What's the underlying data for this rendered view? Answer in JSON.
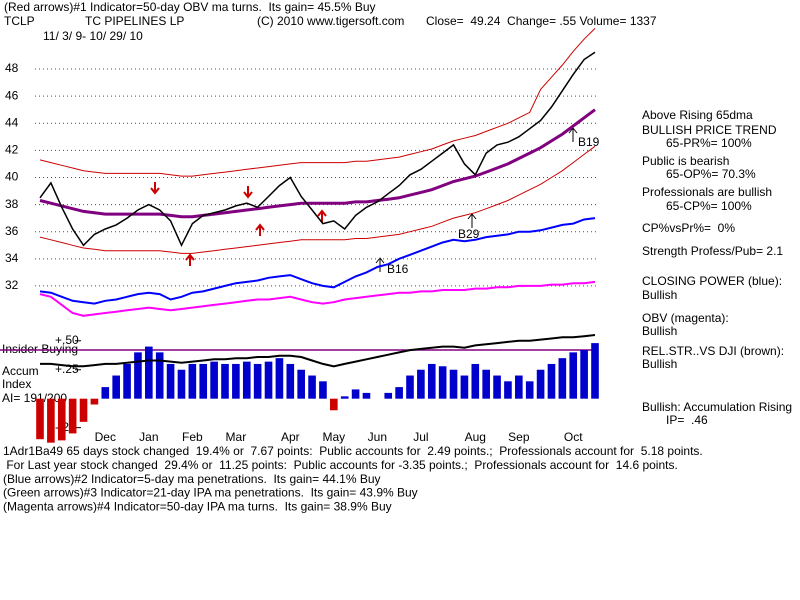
{
  "header": {
    "line1": "(Red arrows)#1 Indicator=50-day OBV ma turns.  Its gain= 45.5% Buy",
    "symbol": "TCLP",
    "name": "TC PIPELINES LP",
    "copyright": "(C) 2010 www.tigersoft.com",
    "quote": "Close=  49.24  Change= .55 Volume= 1337",
    "dates": "11/ 3/ 9- 10/ 29/ 10"
  },
  "chart_data": [
    {
      "type": "line",
      "ylim": [
        29,
        52
      ],
      "yticks": [
        32,
        34,
        36,
        38,
        40,
        42,
        44,
        46,
        48
      ],
      "grid": true,
      "grid_color": "#008000",
      "annotations": [
        "B16",
        "B19",
        "B29"
      ],
      "series": [
        {
          "color": "#cc0000",
          "width": 1,
          "values": [
            41.3,
            41.1,
            40.9,
            40.7,
            40.5,
            40.4,
            40.3,
            40.3,
            40.3,
            40.3,
            40.3,
            40.3,
            40.2,
            40.1,
            40.1,
            40.2,
            40.3,
            40.4,
            40.5,
            40.6,
            40.7,
            40.8,
            40.9,
            41.0,
            41.1,
            41.1,
            41.1,
            41.1,
            41.1,
            41.2,
            41.2,
            41.3,
            41.4,
            41.5,
            41.7,
            41.9,
            42.1,
            42.4,
            42.7,
            42.9,
            43.1,
            43.4,
            43.7,
            44.0,
            44.4,
            44.8,
            46.5,
            47.4,
            48.3,
            49.3,
            50.2,
            51.0
          ]
        },
        {
          "color": "#cc0000",
          "width": 1,
          "values": [
            35.6,
            35.4,
            35.2,
            35.0,
            34.8,
            34.7,
            34.6,
            34.6,
            34.6,
            34.6,
            34.6,
            34.6,
            34.5,
            34.4,
            34.4,
            34.5,
            34.6,
            34.7,
            34.8,
            34.9,
            35.0,
            35.1,
            35.2,
            35.3,
            35.4,
            35.4,
            35.4,
            35.4,
            35.4,
            35.5,
            35.5,
            35.6,
            35.7,
            35.8,
            36.0,
            36.2,
            36.4,
            36.7,
            37.0,
            37.2,
            37.4,
            37.7,
            38.0,
            38.3,
            38.7,
            39.1,
            39.5,
            40.0,
            40.5,
            41.1,
            41.7,
            42.3
          ]
        },
        {
          "color": "#800080",
          "width": 3,
          "values": [
            38.3,
            38.1,
            37.9,
            37.7,
            37.5,
            37.4,
            37.3,
            37.3,
            37.3,
            37.3,
            37.3,
            37.3,
            37.2,
            37.1,
            37.1,
            37.2,
            37.3,
            37.4,
            37.5,
            37.6,
            37.7,
            37.8,
            37.9,
            38.0,
            38.1,
            38.1,
            38.1,
            38.1,
            38.1,
            38.2,
            38.2,
            38.3,
            38.4,
            38.5,
            38.7,
            38.9,
            39.1,
            39.4,
            39.7,
            39.9,
            40.1,
            40.4,
            40.7,
            41.0,
            41.4,
            41.8,
            42.2,
            42.7,
            43.2,
            43.8,
            44.4,
            45.0
          ]
        },
        {
          "color": "#000000",
          "width": 1.5,
          "values": [
            38.5,
            39.6,
            37.8,
            36.2,
            35.0,
            35.8,
            36.2,
            36.5,
            37.0,
            37.6,
            38.0,
            37.6,
            36.8,
            35.0,
            36.6,
            37.2,
            37.4,
            37.6,
            37.9,
            38.1,
            37.8,
            38.6,
            39.4,
            40.0,
            38.6,
            37.6,
            36.6,
            36.8,
            36.2,
            37.2,
            37.8,
            38.2,
            38.8,
            39.4,
            40.2,
            40.6,
            41.2,
            41.8,
            42.4,
            41.0,
            40.2,
            41.8,
            42.4,
            42.6,
            43.0,
            43.6,
            44.2,
            45.2,
            46.4,
            47.6,
            48.7,
            49.24
          ]
        },
        {
          "color": "#0000ff",
          "width": 2,
          "values": [
            31.6,
            31.5,
            31.2,
            30.9,
            30.8,
            30.7,
            30.9,
            31.0,
            31.2,
            31.4,
            31.5,
            31.4,
            31.0,
            31.2,
            31.5,
            31.6,
            31.8,
            32.0,
            32.2,
            32.3,
            32.4,
            32.6,
            32.7,
            32.8,
            32.5,
            32.2,
            32.0,
            31.9,
            32.3,
            32.7,
            33.0,
            33.4,
            33.6,
            34.0,
            34.3,
            34.6,
            34.9,
            35.2,
            35.4,
            35.3,
            35.4,
            35.6,
            35.7,
            35.8,
            36.0,
            36.0,
            36.1,
            36.3,
            36.5,
            36.6,
            36.9,
            37.0
          ]
        },
        {
          "color": "#ff00ff",
          "width": 2,
          "values": [
            31.4,
            31.2,
            30.6,
            30.0,
            29.8,
            29.9,
            30.0,
            30.1,
            30.2,
            30.3,
            30.4,
            30.3,
            30.2,
            30.3,
            30.4,
            30.5,
            30.6,
            30.7,
            30.8,
            30.9,
            31.0,
            31.0,
            31.1,
            31.2,
            31.0,
            30.8,
            30.7,
            30.8,
            31.0,
            31.1,
            31.2,
            31.3,
            31.4,
            31.5,
            31.5,
            31.6,
            31.6,
            31.7,
            31.7,
            31.7,
            31.8,
            31.8,
            31.9,
            31.9,
            32.0,
            32.0,
            32.0,
            32.1,
            32.1,
            32.2,
            32.2,
            32.3
          ]
        }
      ]
    },
    {
      "type": "bar",
      "ylim": [
        -0.4,
        0.55
      ],
      "yticks": [
        {
          "value": 0.5,
          "label": "+.50"
        },
        {
          "value": 0.25,
          "label": "+.25"
        },
        {
          "value": -0.25,
          "label": "-.25"
        }
      ],
      "insider": "Insider Buying",
      "label1": "Accum",
      "label2": "Index",
      "ai": "AI= 191/200",
      "hline": 0.42,
      "hline_color": "#800080",
      "categories": [
        null,
        null,
        null,
        null,
        null,
        null,
        "Dec",
        null,
        null,
        null,
        "Jan",
        null,
        null,
        null,
        "Feb",
        null,
        null,
        null,
        "Mar",
        null,
        null,
        null,
        null,
        "Apr",
        null,
        null,
        null,
        "May",
        null,
        null,
        null,
        "Jun",
        null,
        null,
        null,
        "Jul",
        null,
        null,
        null,
        null,
        "Aug",
        null,
        null,
        null,
        "Sep",
        null,
        null,
        null,
        null,
        "Oct",
        null,
        null
      ],
      "color": "#0000cc",
      "negative_color": "#cc0000",
      "values": [
        -0.35,
        -0.38,
        -0.36,
        -0.3,
        -0.2,
        -0.05,
        0.1,
        0.2,
        0.3,
        0.4,
        0.45,
        0.4,
        0.3,
        0.25,
        0.3,
        0.3,
        0.32,
        0.3,
        0.3,
        0.32,
        0.3,
        0.32,
        0.35,
        0.3,
        0.25,
        0.2,
        0.15,
        -0.1,
        0.02,
        0.08,
        0.05,
        0.0,
        0.05,
        0.1,
        0.2,
        0.25,
        0.3,
        0.28,
        0.25,
        0.2,
        0.3,
        0.25,
        0.2,
        0.15,
        0.2,
        0.15,
        0.25,
        0.3,
        0.35,
        0.4,
        0.42,
        0.48
      ],
      "line_color": "#000000",
      "line": [
        0.3,
        0.3,
        0.29,
        0.28,
        0.28,
        0.29,
        0.3,
        0.3,
        0.31,
        0.32,
        0.33,
        0.33,
        0.32,
        0.31,
        0.32,
        0.33,
        0.34,
        0.34,
        0.35,
        0.35,
        0.36,
        0.36,
        0.37,
        0.37,
        0.36,
        0.33,
        0.3,
        0.28,
        0.3,
        0.32,
        0.34,
        0.36,
        0.38,
        0.4,
        0.42,
        0.43,
        0.44,
        0.45,
        0.45,
        0.44,
        0.46,
        0.47,
        0.48,
        0.49,
        0.5,
        0.5,
        0.51,
        0.52,
        0.53,
        0.53,
        0.54,
        0.55
      ]
    }
  ],
  "side_notes": [
    "Above Rising 65dma",
    "BULLISH PRICE TREND",
    "65-PR%= 100%",
    "Public is bearish",
    "65-OP%= 70.3%",
    "Professionals are bullish",
    "65-CP%= 100%",
    "CP%vsPr%=  0%",
    "Strength Profess/Pub= 2.1",
    "CLOSING POWER (blue):",
    "Bullish",
    "OBV (magenta):",
    "Bullish",
    "REL.STR..VS DJI (brown):",
    "Bullish",
    "Bullish: Accumulation Rising",
    "IP=  .46"
  ],
  "footer": [
    "1Adr1Ba49 65 days stock changed  19.4% or  7.67 points:  Public accounts for  2.49 points.;  Professionals account for  5.18 points.",
    " For Last year stock changed  29.4% or  11.25 points:  Public accounts for -3.35 points.;  Professionals account for  14.6 points.",
    "(Blue arrows)#2 Indicator=5-day ma penetrations.  Its gain= 44.1% Buy",
    "(Green arrows)#3 Indicator=21-day IPA ma penetrations.  Its gain= 43.9% Buy",
    "(Magenta arrows)#4 Indicator=50-day IPA ma turns.  Its gain= 38.9% Buy"
  ]
}
